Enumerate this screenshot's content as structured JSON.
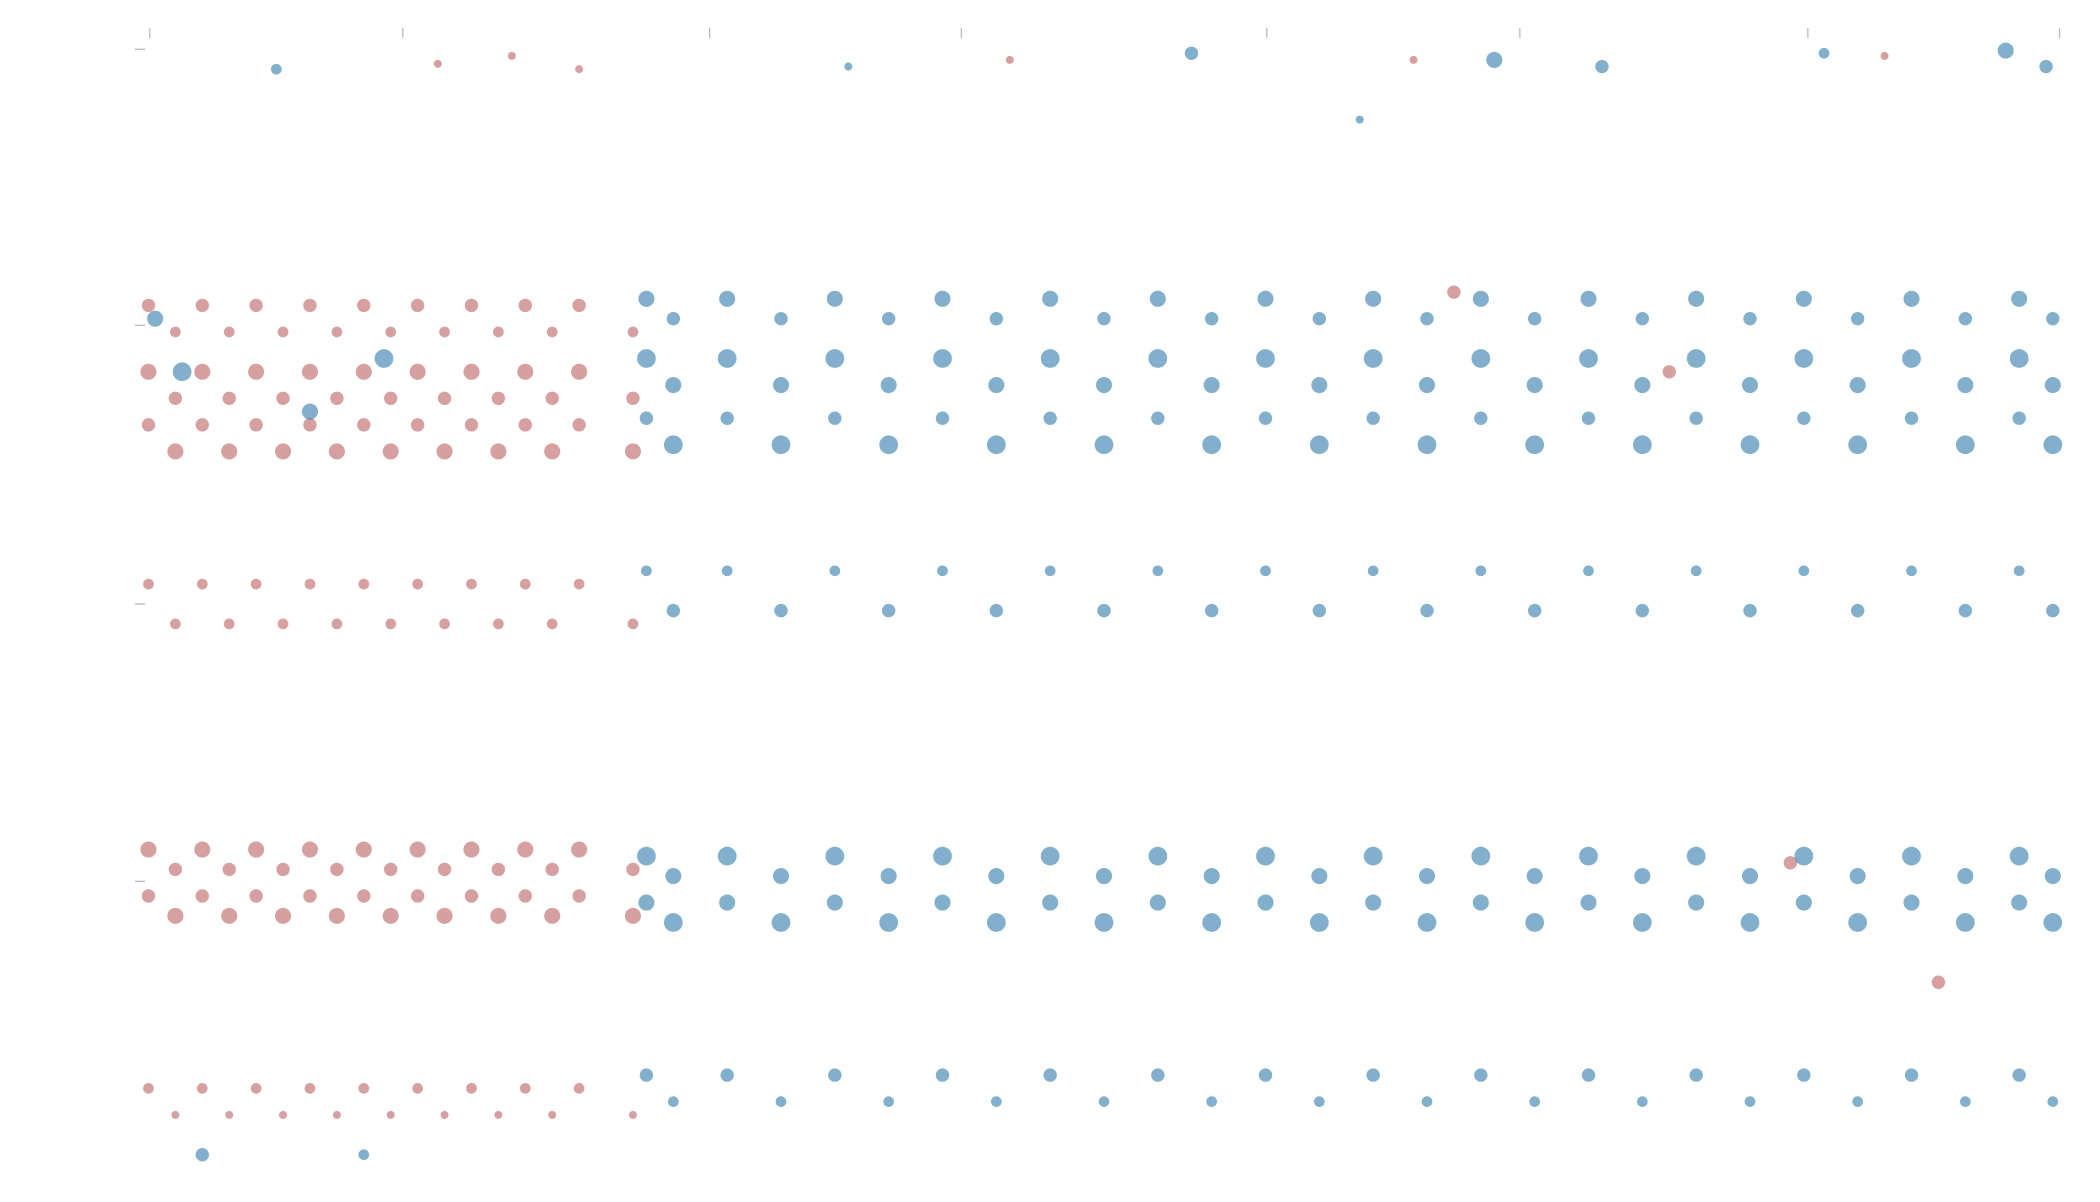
{
  "chart_data": {
    "type": "scatter",
    "xlim": [
      100,
      1540
    ],
    "ylim": [
      0,
      850
    ],
    "xticks": [
      111,
      299,
      527,
      714,
      941,
      1129,
      1343,
      1530
    ],
    "yticks": [
      216,
      425,
      635,
      843
    ],
    "series": [
      {
        "color": "#b55252",
        "x": [
          110,
          110,
          110,
          110,
          110,
          110,
          110,
          130,
          130,
          130,
          130,
          130,
          130,
          130,
          150,
          150,
          150,
          150,
          150,
          150,
          150,
          170,
          170,
          170,
          170,
          170,
          170,
          170,
          190,
          190,
          190,
          190,
          190,
          190,
          190,
          210,
          210,
          210,
          210,
          210,
          210,
          210,
          230,
          230,
          230,
          230,
          230,
          230,
          230,
          250,
          250,
          250,
          250,
          250,
          250,
          250,
          270,
          270,
          270,
          270,
          270,
          270,
          270,
          290,
          290,
          290,
          290,
          290,
          290,
          290,
          310,
          310,
          310,
          310,
          310,
          310,
          310,
          330,
          330,
          330,
          330,
          330,
          330,
          330,
          350,
          350,
          350,
          350,
          350,
          350,
          350,
          370,
          370,
          370,
          370,
          370,
          370,
          370,
          390,
          390,
          390,
          390,
          390,
          390,
          390,
          410,
          410,
          410,
          410,
          410,
          410,
          410,
          430,
          430,
          430,
          430,
          430,
          430,
          430,
          470,
          470,
          470,
          470,
          470,
          470,
          470,
          325,
          380,
          430,
          750,
          1050,
          1400,
          1080,
          1240,
          1330,
          1440
        ],
        "y": [
          650,
          600,
          560,
          440,
          240,
          205,
          60,
          630,
          580,
          540,
          410,
          225,
          190,
          40,
          650,
          600,
          560,
          440,
          240,
          205,
          60,
          630,
          580,
          540,
          410,
          225,
          190,
          40,
          650,
          600,
          560,
          440,
          240,
          205,
          60,
          630,
          580,
          540,
          410,
          225,
          190,
          40,
          650,
          600,
          560,
          440,
          240,
          205,
          60,
          630,
          580,
          540,
          410,
          225,
          190,
          40,
          650,
          600,
          560,
          440,
          240,
          205,
          60,
          630,
          580,
          540,
          410,
          225,
          190,
          40,
          650,
          600,
          560,
          440,
          240,
          205,
          60,
          630,
          580,
          540,
          410,
          225,
          190,
          40,
          650,
          600,
          560,
          440,
          240,
          205,
          60,
          630,
          580,
          540,
          410,
          225,
          190,
          40,
          650,
          600,
          560,
          440,
          240,
          205,
          60,
          630,
          580,
          540,
          410,
          225,
          190,
          40,
          650,
          600,
          560,
          440,
          240,
          205,
          60,
          630,
          580,
          540,
          410,
          225,
          190,
          40,
          832,
          838,
          828,
          835,
          835,
          838,
          660,
          600,
          230,
          140
        ],
        "size": [
          5,
          6,
          5,
          4,
          6,
          5,
          4,
          4,
          5,
          6,
          4,
          5,
          6,
          3,
          5,
          6,
          5,
          4,
          6,
          5,
          4,
          4,
          5,
          6,
          4,
          5,
          6,
          3,
          5,
          6,
          5,
          4,
          6,
          5,
          4,
          4,
          5,
          6,
          4,
          5,
          6,
          3,
          5,
          6,
          5,
          4,
          6,
          5,
          4,
          4,
          5,
          6,
          4,
          5,
          6,
          3,
          5,
          6,
          5,
          4,
          6,
          5,
          4,
          4,
          5,
          6,
          4,
          5,
          6,
          3,
          5,
          6,
          5,
          4,
          6,
          5,
          4,
          4,
          5,
          6,
          4,
          5,
          6,
          3,
          5,
          6,
          5,
          4,
          6,
          5,
          4,
          4,
          5,
          6,
          4,
          5,
          6,
          3,
          5,
          6,
          5,
          4,
          6,
          5,
          4,
          4,
          5,
          6,
          4,
          5,
          6,
          3,
          5,
          6,
          5,
          4,
          6,
          5,
          4,
          4,
          5,
          6,
          4,
          5,
          6,
          3,
          3,
          3,
          3,
          3,
          3,
          3,
          5,
          5,
          5,
          5
        ]
      },
      {
        "color": "#1b6fa3",
        "x": [
          480,
          480,
          480,
          480,
          480,
          480,
          480,
          500,
          500,
          500,
          500,
          500,
          500,
          500,
          540,
          540,
          540,
          540,
          540,
          540,
          540,
          580,
          580,
          580,
          580,
          580,
          580,
          580,
          620,
          620,
          620,
          620,
          620,
          620,
          620,
          660,
          660,
          660,
          660,
          660,
          660,
          660,
          700,
          700,
          700,
          700,
          700,
          700,
          700,
          740,
          740,
          740,
          740,
          740,
          740,
          740,
          780,
          780,
          780,
          780,
          780,
          780,
          780,
          820,
          820,
          820,
          820,
          820,
          820,
          820,
          860,
          860,
          860,
          860,
          860,
          860,
          860,
          900,
          900,
          900,
          900,
          900,
          900,
          900,
          940,
          940,
          940,
          940,
          940,
          940,
          940,
          980,
          980,
          980,
          980,
          980,
          980,
          980,
          1020,
          1020,
          1020,
          1020,
          1020,
          1020,
          1020,
          1060,
          1060,
          1060,
          1060,
          1060,
          1060,
          1060,
          1100,
          1100,
          1100,
          1100,
          1100,
          1100,
          1100,
          1140,
          1140,
          1140,
          1140,
          1140,
          1140,
          1140,
          1180,
          1180,
          1180,
          1180,
          1180,
          1180,
          1180,
          1220,
          1220,
          1220,
          1220,
          1220,
          1220,
          1220,
          1260,
          1260,
          1260,
          1260,
          1260,
          1260,
          1260,
          1300,
          1300,
          1300,
          1300,
          1300,
          1300,
          1300,
          1340,
          1340,
          1340,
          1340,
          1340,
          1340,
          1340,
          1380,
          1380,
          1380,
          1380,
          1380,
          1380,
          1380,
          1420,
          1420,
          1420,
          1420,
          1420,
          1420,
          1420,
          1460,
          1460,
          1460,
          1460,
          1460,
          1460,
          1460,
          1500,
          1500,
          1500,
          1500,
          1500,
          1500,
          1500,
          1525,
          1525,
          1525,
          1525,
          1525,
          1525,
          1525,
          630,
          885,
          1110,
          1190,
          1355,
          1490,
          1520,
          1010,
          115,
          135,
          230,
          285,
          150,
          270,
          205
        ],
        "y": [
          655,
          610,
          565,
          450,
          235,
          200,
          70,
          640,
          590,
          545,
          420,
          220,
          185,
          50,
          655,
          610,
          565,
          450,
          235,
          200,
          70,
          640,
          590,
          545,
          420,
          220,
          185,
          50,
          655,
          610,
          565,
          450,
          235,
          200,
          70,
          640,
          590,
          545,
          420,
          220,
          185,
          50,
          655,
          610,
          565,
          450,
          235,
          200,
          70,
          640,
          590,
          545,
          420,
          220,
          185,
          50,
          655,
          610,
          565,
          450,
          235,
          200,
          70,
          640,
          590,
          545,
          420,
          220,
          185,
          50,
          655,
          610,
          565,
          450,
          235,
          200,
          70,
          640,
          590,
          545,
          420,
          220,
          185,
          50,
          655,
          610,
          565,
          450,
          235,
          200,
          70,
          640,
          590,
          545,
          420,
          220,
          185,
          50,
          655,
          610,
          565,
          450,
          235,
          200,
          70,
          640,
          590,
          545,
          420,
          220,
          185,
          50,
          655,
          610,
          565,
          450,
          235,
          200,
          70,
          640,
          590,
          545,
          420,
          220,
          185,
          50,
          655,
          610,
          565,
          450,
          235,
          200,
          70,
          640,
          590,
          545,
          420,
          220,
          185,
          50,
          655,
          610,
          565,
          450,
          235,
          200,
          70,
          640,
          590,
          545,
          420,
          220,
          185,
          50,
          655,
          610,
          565,
          450,
          235,
          200,
          70,
          640,
          590,
          545,
          420,
          220,
          185,
          50,
          655,
          610,
          565,
          450,
          235,
          200,
          70,
          640,
          590,
          545,
          420,
          220,
          185,
          50,
          655,
          610,
          565,
          450,
          235,
          200,
          70,
          640,
          590,
          545,
          420,
          220,
          185,
          50,
          830,
          840,
          835,
          830,
          840,
          842,
          830,
          790,
          640,
          600,
          570,
          610,
          10,
          10,
          828
        ],
        "size": [
          6,
          7,
          5,
          4,
          7,
          6,
          5,
          5,
          6,
          7,
          5,
          6,
          7,
          4,
          6,
          7,
          5,
          4,
          7,
          6,
          5,
          5,
          6,
          7,
          5,
          6,
          7,
          4,
          6,
          7,
          5,
          4,
          7,
          6,
          5,
          5,
          6,
          7,
          5,
          6,
          7,
          4,
          6,
          7,
          5,
          4,
          7,
          6,
          5,
          5,
          6,
          7,
          5,
          6,
          7,
          4,
          6,
          7,
          5,
          4,
          7,
          6,
          5,
          5,
          6,
          7,
          5,
          6,
          7,
          4,
          6,
          7,
          5,
          4,
          7,
          6,
          5,
          5,
          6,
          7,
          5,
          6,
          7,
          4,
          6,
          7,
          5,
          4,
          7,
          6,
          5,
          5,
          6,
          7,
          5,
          6,
          7,
          4,
          6,
          7,
          5,
          4,
          7,
          6,
          5,
          5,
          6,
          7,
          5,
          6,
          7,
          4,
          6,
          7,
          5,
          4,
          7,
          6,
          5,
          5,
          6,
          7,
          5,
          6,
          7,
          4,
          6,
          7,
          5,
          4,
          7,
          6,
          5,
          5,
          6,
          7,
          5,
          6,
          7,
          4,
          6,
          7,
          5,
          4,
          7,
          6,
          5,
          5,
          6,
          7,
          5,
          6,
          7,
          4,
          6,
          7,
          5,
          4,
          7,
          6,
          5,
          5,
          6,
          7,
          5,
          6,
          7,
          4,
          6,
          7,
          5,
          4,
          7,
          6,
          5,
          5,
          6,
          7,
          5,
          6,
          7,
          4,
          6,
          7,
          5,
          4,
          7,
          6,
          5,
          5,
          6,
          7,
          5,
          6,
          7,
          4,
          3,
          5,
          6,
          5,
          4,
          6,
          5,
          3,
          6,
          7,
          6,
          7,
          5,
          4,
          4
        ]
      }
    ]
  }
}
